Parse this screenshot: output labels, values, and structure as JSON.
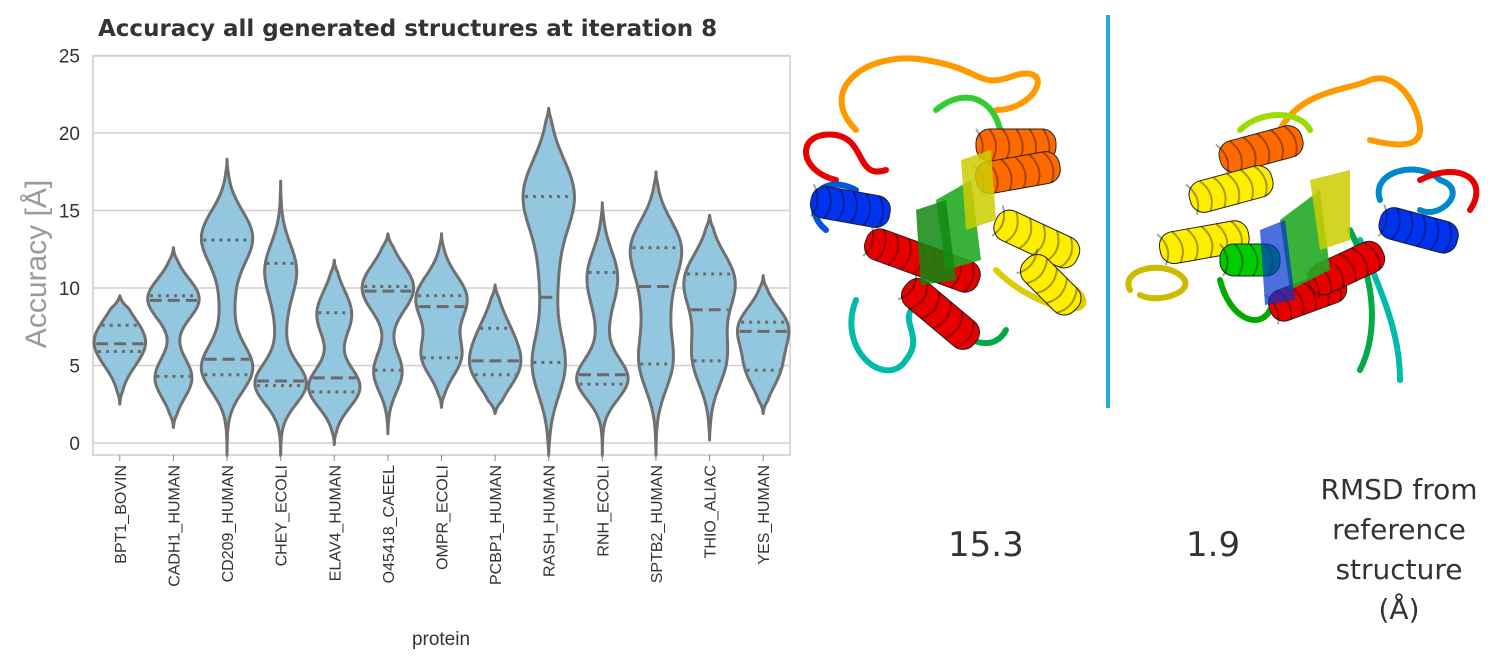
{
  "chart_data": {
    "type": "violin",
    "title": "Accuracy all generated structures at iteration 8",
    "xlabel": "protein",
    "ylabel": "Accuracy [Å]",
    "ylim": [
      -0.8,
      25
    ],
    "yticks": [
      0,
      5,
      10,
      15,
      20,
      25
    ],
    "grid": "horizontal",
    "fill_color": "#93c6df",
    "edge_color": "#707070",
    "categories": [
      "BPT1_BOVIN",
      "CADH1_HUMAN",
      "CD209_HUMAN",
      "CHEY_ECOLI",
      "ELAV4_HUMAN",
      "O45418_CAEEL",
      "OMPR_ECOLI",
      "PCBP1_HUMAN",
      "RASH_HUMAN",
      "RNH_ECOLI",
      "SPTB2_HUMAN",
      "THIO_ALIAC",
      "YES_HUMAN"
    ],
    "violins": [
      {
        "min": 2.5,
        "max": 9.5,
        "q1": 5.9,
        "median": 6.4,
        "q3": 7.6,
        "modes": [
          {
            "y": 6.5,
            "w": 0.46,
            "s": 1.5
          }
        ]
      },
      {
        "min": 1.0,
        "max": 12.6,
        "q1": 4.3,
        "median": 9.2,
        "q3": 9.5,
        "modes": [
          {
            "y": 9.3,
            "w": 0.46,
            "s": 1.3
          },
          {
            "y": 4.2,
            "w": 0.33,
            "s": 1.3
          }
        ]
      },
      {
        "min": -0.8,
        "max": 18.3,
        "q1": 4.4,
        "median": 5.4,
        "q3": 13.1,
        "modes": [
          {
            "y": 13.3,
            "w": 0.46,
            "s": 1.7
          },
          {
            "y": 4.8,
            "w": 0.46,
            "s": 1.5
          },
          {
            "y": 9.0,
            "w": 0.12,
            "s": 2.0
          }
        ]
      },
      {
        "min": -0.8,
        "max": 16.9,
        "q1": 3.7,
        "median": 4.0,
        "q3": 11.6,
        "modes": [
          {
            "y": 3.8,
            "w": 0.46,
            "s": 1.3
          },
          {
            "y": 11.2,
            "w": 0.28,
            "s": 1.7
          },
          {
            "y": 7.5,
            "w": 0.08,
            "s": 2.0
          }
        ]
      },
      {
        "min": -0.1,
        "max": 11.8,
        "q1": 3.3,
        "median": 4.2,
        "q3": 8.4,
        "modes": [
          {
            "y": 3.6,
            "w": 0.44,
            "s": 1.3
          },
          {
            "y": 8.3,
            "w": 0.3,
            "s": 1.5
          }
        ]
      },
      {
        "min": 0.6,
        "max": 13.5,
        "q1": 4.7,
        "median": 9.8,
        "q3": 10.1,
        "modes": [
          {
            "y": 10.0,
            "w": 0.47,
            "s": 1.5
          },
          {
            "y": 4.6,
            "w": 0.26,
            "s": 1.3
          }
        ]
      },
      {
        "min": 2.3,
        "max": 13.5,
        "q1": 5.5,
        "median": 8.8,
        "q3": 9.5,
        "modes": [
          {
            "y": 9.3,
            "w": 0.45,
            "s": 1.5
          },
          {
            "y": 5.6,
            "w": 0.34,
            "s": 1.3
          }
        ]
      },
      {
        "min": 1.9,
        "max": 10.2,
        "q1": 4.4,
        "median": 5.3,
        "q3": 7.4,
        "modes": [
          {
            "y": 4.8,
            "w": 0.4,
            "s": 1.4
          },
          {
            "y": 7.0,
            "w": 0.26,
            "s": 1.5
          }
        ]
      },
      {
        "min": -0.8,
        "max": 21.6,
        "q1": 5.2,
        "median": 9.4,
        "q3": 15.9,
        "modes": [
          {
            "y": 16.0,
            "w": 0.47,
            "s": 2.3
          },
          {
            "y": 5.0,
            "w": 0.3,
            "s": 2.0
          },
          {
            "y": 10.5,
            "w": 0.15,
            "s": 2.5
          }
        ]
      },
      {
        "min": -0.8,
        "max": 15.5,
        "q1": 3.8,
        "median": 4.4,
        "q3": 11.0,
        "modes": [
          {
            "y": 4.1,
            "w": 0.47,
            "s": 1.3
          },
          {
            "y": 10.8,
            "w": 0.27,
            "s": 1.7
          },
          {
            "y": 7.5,
            "w": 0.08,
            "s": 2.0
          }
        ]
      },
      {
        "min": -0.8,
        "max": 17.5,
        "q1": 5.1,
        "median": 10.1,
        "q3": 12.6,
        "modes": [
          {
            "y": 12.6,
            "w": 0.45,
            "s": 1.8
          },
          {
            "y": 5.2,
            "w": 0.3,
            "s": 1.8
          },
          {
            "y": 9.0,
            "w": 0.2,
            "s": 1.8
          }
        ]
      },
      {
        "min": 0.2,
        "max": 14.7,
        "q1": 5.3,
        "median": 8.6,
        "q3": 10.9,
        "modes": [
          {
            "y": 10.6,
            "w": 0.46,
            "s": 1.7
          },
          {
            "y": 5.3,
            "w": 0.3,
            "s": 1.7
          },
          {
            "y": 8.0,
            "w": 0.15,
            "s": 1.8
          }
        ]
      },
      {
        "min": 1.9,
        "max": 10.8,
        "q1": 4.7,
        "median": 7.2,
        "q3": 7.8,
        "modes": [
          {
            "y": 7.5,
            "w": 0.45,
            "s": 1.3
          },
          {
            "y": 4.8,
            "w": 0.3,
            "s": 1.3
          }
        ]
      }
    ]
  },
  "protein_images": [
    {
      "name": "generated structure (15.3 Å)",
      "helix_colors": [
        "#e60000",
        "#e60000",
        "#0033ee",
        "#ff6a00",
        "#ff6a00",
        "#ffee00",
        "#ffee00"
      ]
    },
    {
      "name": "generated structure (1.9 Å)",
      "helix_colors": [
        "#ff6a00",
        "#ffee00",
        "#ffee00",
        "#e60000",
        "#e60000",
        "#0033ee",
        "#00cc00"
      ]
    }
  ],
  "rmsd": {
    "values": [
      "15.3",
      "1.9"
    ],
    "caption_lines": [
      "RMSD from",
      "reference",
      "structure",
      "(Å)"
    ]
  },
  "divider_color": "#29abe2"
}
